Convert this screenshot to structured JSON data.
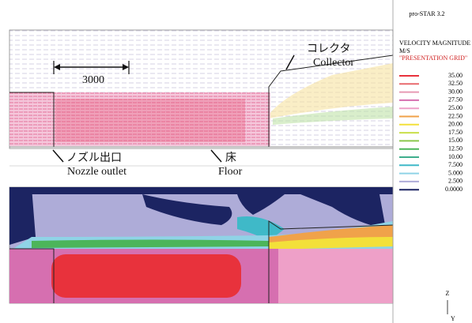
{
  "header": {
    "software": "pro-STAR 3.2"
  },
  "legend": {
    "title": "VELOCITY MAGNITUDE",
    "unit": "M/S",
    "grid": "\"PRESENTATION GRID\"",
    "items": [
      {
        "label": "35.00",
        "color": "#e8323c"
      },
      {
        "label": "32.50",
        "color": "#e86a6e"
      },
      {
        "label": "30.00",
        "color": "#e79ab4"
      },
      {
        "label": "27.50",
        "color": "#d66fb0"
      },
      {
        "label": "25.00",
        "color": "#eea0c8"
      },
      {
        "label": "22.50",
        "color": "#f0a24a"
      },
      {
        "label": "20.00",
        "color": "#f3e03a"
      },
      {
        "label": "17.50",
        "color": "#c9df4a"
      },
      {
        "label": "15.00",
        "color": "#8cc84e"
      },
      {
        "label": "12.50",
        "color": "#4cb55a"
      },
      {
        "label": "10.00",
        "color": "#3fae8c"
      },
      {
        "label": "7.500",
        "color": "#3fb9c8"
      },
      {
        "label": "5.000",
        "color": "#8fd3e6"
      },
      {
        "label": "2.500",
        "color": "#aeacd8"
      },
      {
        "label": "0.0000",
        "color": "#1c2462"
      }
    ]
  },
  "annotations": {
    "dimension": "3000",
    "collector_ja": "コレクタ",
    "collector_en": "Collector",
    "nozzle_ja": "ノズル出口",
    "nozzle_en": "Nozzle outlet",
    "floor_ja": "床",
    "floor_en": "Floor"
  },
  "axes": {
    "z": "Z",
    "y": "Y"
  }
}
